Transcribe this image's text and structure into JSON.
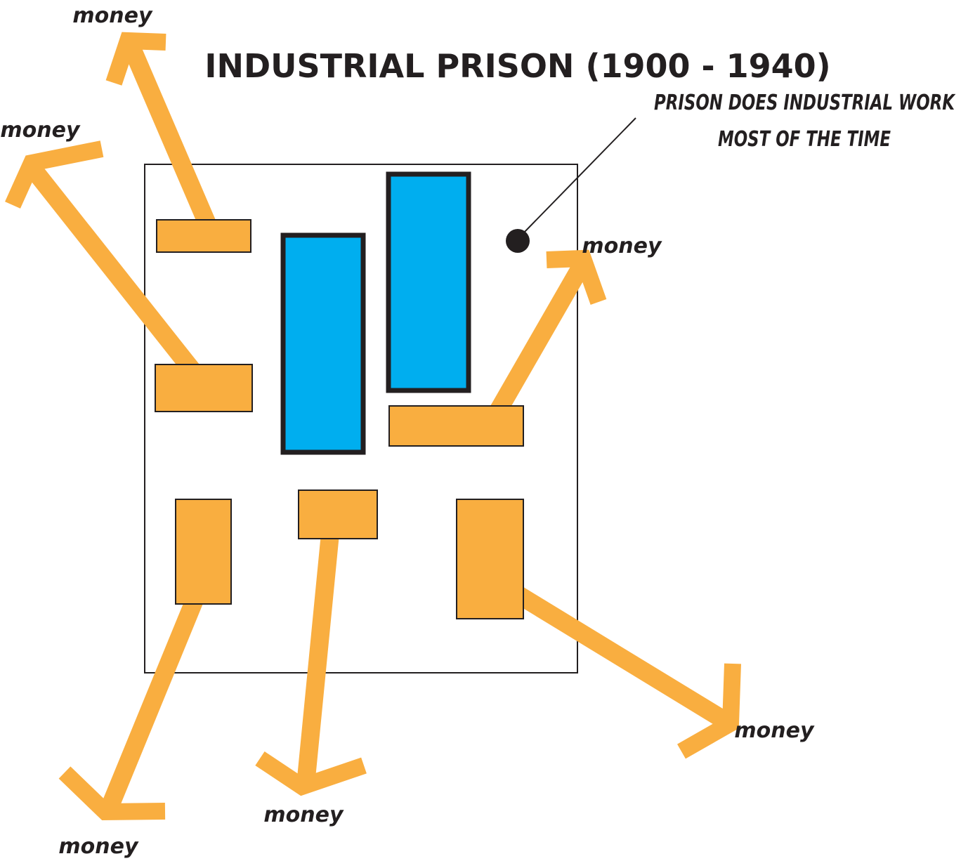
{
  "title": "INDUSTRIAL PRISON (1900 - 1940)",
  "annotation": [
    "PRISON DOES INDUSTRIAL WORK",
    "MOST OF THE TIME"
  ],
  "labels": [
    "money",
    "money",
    "money",
    "money",
    "money",
    "money"
  ]
}
